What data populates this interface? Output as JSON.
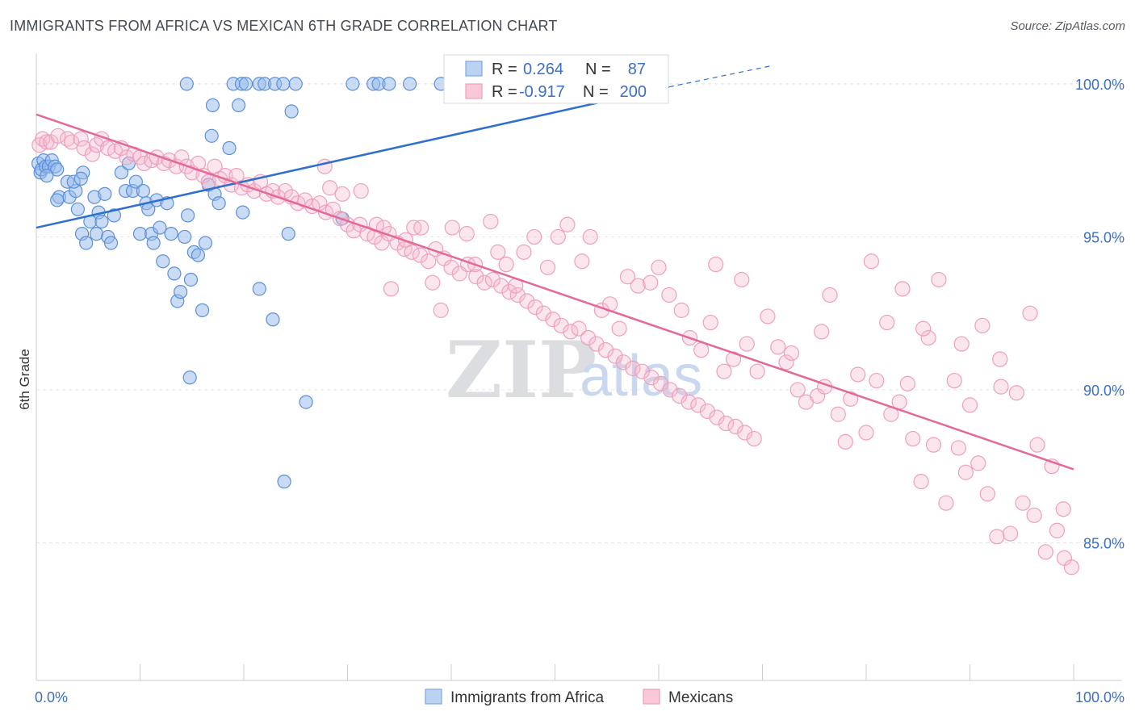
{
  "title": "IMMIGRANTS FROM AFRICA VS MEXICAN 6TH GRADE CORRELATION CHART",
  "source": "Source: ZipAtlas.com",
  "watermark": {
    "zip": "ZIP",
    "atlas": "atlas"
  },
  "colors": {
    "blue": "#5b8fd9",
    "blue_line": "#2f6fce",
    "pink": "#ee8fb0",
    "pink_line": "#e2699a"
  },
  "chart_data": {
    "type": "scatter",
    "ylabel": "6th Grade",
    "xlim": [
      0,
      100
    ],
    "ylim": [
      80.5,
      101.0
    ],
    "y_ticks": [
      85.0,
      90.0,
      95.0,
      100.0
    ],
    "y_tick_labels": [
      "85.0%",
      "90.0%",
      "95.0%",
      "100.0%"
    ],
    "x_tick_labels": [
      "0.0%",
      "100.0%"
    ],
    "grid": true,
    "legend": {
      "placement": "top-center",
      "rows": [
        {
          "r_label": "R =",
          "r_value": "0.264",
          "n_label": "N =",
          "n_value": "87"
        },
        {
          "r_label": "R =",
          "r_value": "-0.917",
          "n_label": "N =",
          "n_value": "200"
        }
      ]
    },
    "series": [
      {
        "name": "Immigrants from Africa",
        "trend": {
          "x": [
            0,
            61
          ],
          "y": [
            95.3,
            99.9
          ]
        },
        "trend_dashed": {
          "x": [
            61,
            71
          ],
          "y": [
            99.9,
            100.6
          ]
        },
        "points": [
          [
            0.2,
            97.4
          ],
          [
            0.4,
            97.1
          ],
          [
            0.5,
            97.2
          ],
          [
            0.7,
            97.5
          ],
          [
            0.9,
            97.3
          ],
          [
            1.2,
            97.3
          ],
          [
            1.5,
            97.5
          ],
          [
            1.8,
            97.3
          ],
          [
            2.0,
            97.2
          ],
          [
            4.5,
            97.1
          ],
          [
            2.2,
            96.3
          ],
          [
            2.0,
            96.2
          ],
          [
            3.0,
            96.8
          ],
          [
            3.2,
            96.3
          ],
          [
            3.8,
            96.5
          ],
          [
            3.6,
            96.8
          ],
          [
            4.3,
            96.9
          ],
          [
            4.0,
            95.9
          ],
          [
            4.4,
            95.1
          ],
          [
            4.8,
            94.8
          ],
          [
            5.2,
            95.5
          ],
          [
            5.6,
            96.3
          ],
          [
            5.8,
            95.1
          ],
          [
            6.0,
            95.8
          ],
          [
            6.3,
            95.5
          ],
          [
            6.6,
            96.4
          ],
          [
            6.9,
            95.0
          ],
          [
            7.2,
            94.8
          ],
          [
            7.5,
            95.7
          ],
          [
            8.2,
            97.1
          ],
          [
            8.6,
            96.5
          ],
          [
            8.9,
            97.4
          ],
          [
            9.3,
            96.5
          ],
          [
            9.6,
            96.8
          ],
          [
            10.0,
            95.1
          ],
          [
            10.3,
            96.5
          ],
          [
            10.6,
            96.1
          ],
          [
            10.8,
            95.9
          ],
          [
            11.1,
            95.1
          ],
          [
            11.3,
            94.8
          ],
          [
            11.6,
            96.2
          ],
          [
            11.9,
            95.3
          ],
          [
            12.2,
            94.2
          ],
          [
            12.6,
            96.1
          ],
          [
            13.0,
            95.1
          ],
          [
            13.3,
            93.8
          ],
          [
            13.6,
            92.9
          ],
          [
            13.9,
            93.2
          ],
          [
            14.3,
            95.0
          ],
          [
            14.6,
            95.7
          ],
          [
            14.9,
            93.6
          ],
          [
            15.2,
            94.5
          ],
          [
            15.6,
            94.4
          ],
          [
            16.0,
            92.6
          ],
          [
            16.3,
            94.8
          ],
          [
            16.6,
            96.7
          ],
          [
            16.9,
            98.3
          ],
          [
            17.2,
            96.4
          ],
          [
            17.6,
            96.1
          ],
          [
            18.6,
            97.9
          ],
          [
            19.5,
            99.3
          ],
          [
            19.9,
            95.8
          ],
          [
            21.5,
            93.3
          ],
          [
            22.8,
            92.3
          ],
          [
            24.3,
            95.1
          ],
          [
            24.6,
            99.1
          ],
          [
            14.8,
            90.4
          ],
          [
            26.0,
            89.6
          ],
          [
            23.9,
            87.0
          ],
          [
            17.0,
            99.3
          ],
          [
            14.5,
            100.0
          ],
          [
            19.0,
            100.0
          ],
          [
            19.8,
            100.0
          ],
          [
            20.2,
            100.0
          ],
          [
            21.5,
            100.0
          ],
          [
            22.0,
            100.0
          ],
          [
            23.0,
            100.0
          ],
          [
            23.8,
            100.0
          ],
          [
            25.0,
            100.0
          ],
          [
            30.5,
            100.0
          ],
          [
            32.5,
            100.0
          ],
          [
            33.0,
            100.0
          ],
          [
            34.0,
            100.0
          ],
          [
            36.0,
            100.0
          ],
          [
            39.0,
            100.0
          ],
          [
            29.5,
            95.6
          ],
          [
            1.0,
            97.0
          ]
        ]
      },
      {
        "name": "Mexicans",
        "trend": {
          "x": [
            0,
            100
          ],
          "y": [
            99.0,
            87.4
          ]
        },
        "points": [
          [
            0.3,
            98.0
          ],
          [
            0.6,
            98.2
          ],
          [
            1.0,
            98.1
          ],
          [
            1.4,
            98.1
          ],
          [
            2.1,
            98.3
          ],
          [
            3.0,
            98.2
          ],
          [
            3.4,
            98.1
          ],
          [
            4.3,
            98.2
          ],
          [
            4.6,
            97.9
          ],
          [
            5.4,
            97.7
          ],
          [
            5.8,
            98.0
          ],
          [
            6.3,
            98.2
          ],
          [
            6.9,
            97.9
          ],
          [
            7.6,
            97.8
          ],
          [
            8.2,
            97.9
          ],
          [
            8.7,
            97.6
          ],
          [
            9.4,
            97.7
          ],
          [
            10.0,
            97.6
          ],
          [
            10.4,
            97.4
          ],
          [
            11.1,
            97.5
          ],
          [
            11.6,
            97.6
          ],
          [
            12.3,
            97.4
          ],
          [
            12.8,
            97.5
          ],
          [
            13.5,
            97.3
          ],
          [
            14.0,
            97.6
          ],
          [
            14.5,
            97.3
          ],
          [
            15.0,
            97.1
          ],
          [
            15.6,
            97.4
          ],
          [
            16.1,
            97.0
          ],
          [
            16.6,
            96.8
          ],
          [
            17.2,
            97.3
          ],
          [
            17.7,
            96.9
          ],
          [
            18.2,
            97.0
          ],
          [
            18.8,
            96.7
          ],
          [
            19.3,
            97.0
          ],
          [
            19.8,
            96.6
          ],
          [
            20.4,
            96.7
          ],
          [
            21.0,
            96.5
          ],
          [
            21.6,
            96.8
          ],
          [
            22.2,
            96.4
          ],
          [
            22.8,
            96.5
          ],
          [
            23.3,
            96.3
          ],
          [
            24.0,
            96.5
          ],
          [
            24.6,
            96.3
          ],
          [
            25.2,
            96.1
          ],
          [
            25.9,
            96.2
          ],
          [
            26.6,
            96.0
          ],
          [
            27.3,
            96.1
          ],
          [
            27.9,
            95.8
          ],
          [
            28.6,
            95.9
          ],
          [
            29.3,
            95.6
          ],
          [
            30.0,
            95.4
          ],
          [
            30.6,
            95.2
          ],
          [
            31.2,
            95.4
          ],
          [
            31.9,
            95.1
          ],
          [
            32.6,
            95.0
          ],
          [
            33.3,
            94.8
          ],
          [
            34.0,
            95.1
          ],
          [
            34.8,
            94.8
          ],
          [
            35.5,
            94.6
          ],
          [
            36.2,
            94.5
          ],
          [
            37.0,
            94.4
          ],
          [
            37.8,
            94.2
          ],
          [
            38.5,
            94.6
          ],
          [
            39.3,
            94.3
          ],
          [
            40.0,
            94.0
          ],
          [
            40.8,
            93.8
          ],
          [
            41.6,
            94.1
          ],
          [
            42.4,
            93.7
          ],
          [
            43.2,
            93.5
          ],
          [
            44.0,
            93.6
          ],
          [
            44.8,
            93.4
          ],
          [
            45.6,
            93.2
          ],
          [
            46.4,
            93.1
          ],
          [
            47.3,
            92.9
          ],
          [
            48.1,
            92.7
          ],
          [
            48.9,
            92.5
          ],
          [
            49.8,
            92.3
          ],
          [
            50.6,
            92.1
          ],
          [
            51.5,
            91.9
          ],
          [
            52.3,
            92.0
          ],
          [
            53.2,
            91.7
          ],
          [
            54.0,
            91.5
          ],
          [
            54.9,
            91.3
          ],
          [
            55.8,
            91.1
          ],
          [
            56.6,
            90.9
          ],
          [
            57.5,
            90.7
          ],
          [
            58.4,
            90.6
          ],
          [
            59.3,
            90.4
          ],
          [
            60.2,
            90.2
          ],
          [
            61.1,
            90.0
          ],
          [
            62.0,
            89.8
          ],
          [
            62.9,
            89.6
          ],
          [
            63.8,
            89.5
          ],
          [
            64.7,
            89.3
          ],
          [
            65.6,
            89.1
          ],
          [
            66.5,
            88.9
          ],
          [
            67.4,
            88.8
          ],
          [
            68.3,
            88.6
          ],
          [
            69.2,
            88.4
          ],
          [
            27.8,
            97.3
          ],
          [
            28.3,
            96.6
          ],
          [
            29.5,
            96.4
          ],
          [
            31.3,
            96.5
          ],
          [
            32.8,
            95.4
          ],
          [
            33.5,
            95.3
          ],
          [
            34.2,
            93.3
          ],
          [
            35.6,
            94.9
          ],
          [
            36.4,
            95.3
          ],
          [
            37.1,
            95.3
          ],
          [
            38.2,
            93.5
          ],
          [
            39.0,
            92.6
          ],
          [
            40.1,
            95.3
          ],
          [
            41.5,
            95.1
          ],
          [
            42.3,
            94.1
          ],
          [
            43.8,
            95.5
          ],
          [
            44.5,
            94.5
          ],
          [
            45.3,
            94.1
          ],
          [
            46.2,
            93.4
          ],
          [
            47.0,
            94.5
          ],
          [
            48.0,
            95.0
          ],
          [
            49.3,
            94.0
          ],
          [
            50.3,
            95.0
          ],
          [
            51.2,
            95.4
          ],
          [
            52.6,
            94.2
          ],
          [
            53.4,
            95.0
          ],
          [
            54.5,
            92.6
          ],
          [
            55.3,
            92.8
          ],
          [
            56.2,
            92.0
          ],
          [
            57.0,
            93.7
          ],
          [
            58.0,
            93.4
          ],
          [
            59.2,
            93.5
          ],
          [
            60.0,
            94.0
          ],
          [
            61.0,
            93.1
          ],
          [
            62.2,
            92.6
          ],
          [
            63.0,
            91.7
          ],
          [
            64.1,
            91.3
          ],
          [
            65.0,
            92.2
          ],
          [
            66.3,
            90.6
          ],
          [
            67.2,
            91.0
          ],
          [
            68.5,
            91.5
          ],
          [
            69.5,
            90.6
          ],
          [
            70.5,
            92.4
          ],
          [
            71.5,
            91.4
          ],
          [
            72.3,
            90.9
          ],
          [
            73.4,
            90.0
          ],
          [
            74.2,
            89.6
          ],
          [
            75.3,
            89.8
          ],
          [
            76.0,
            90.1
          ],
          [
            77.3,
            89.2
          ],
          [
            78.0,
            88.3
          ],
          [
            79.2,
            90.5
          ],
          [
            80.0,
            88.6
          ],
          [
            81.0,
            90.3
          ],
          [
            82.4,
            89.2
          ],
          [
            83.2,
            89.6
          ],
          [
            84.5,
            88.4
          ],
          [
            85.3,
            87.0
          ],
          [
            86.5,
            88.2
          ],
          [
            87.7,
            86.3
          ],
          [
            88.9,
            88.1
          ],
          [
            89.6,
            87.3
          ],
          [
            90.8,
            87.6
          ],
          [
            91.7,
            86.6
          ],
          [
            92.6,
            85.2
          ],
          [
            93.9,
            85.3
          ],
          [
            95.1,
            86.3
          ],
          [
            96.2,
            85.9
          ],
          [
            97.3,
            84.7
          ],
          [
            98.4,
            85.4
          ],
          [
            99.1,
            84.5
          ],
          [
            99.8,
            84.2
          ],
          [
            65.5,
            94.1
          ],
          [
            68.0,
            93.6
          ],
          [
            72.8,
            91.2
          ],
          [
            75.7,
            91.9
          ],
          [
            78.5,
            89.7
          ],
          [
            82.0,
            92.2
          ],
          [
            84.0,
            90.2
          ],
          [
            86.0,
            91.7
          ],
          [
            88.5,
            90.3
          ],
          [
            90.0,
            89.5
          ],
          [
            91.2,
            92.1
          ],
          [
            92.9,
            91.0
          ],
          [
            94.5,
            89.9
          ],
          [
            96.5,
            88.2
          ],
          [
            97.9,
            87.5
          ],
          [
            99.0,
            86.1
          ],
          [
            76.5,
            93.1
          ],
          [
            80.5,
            94.2
          ],
          [
            83.5,
            93.3
          ],
          [
            85.5,
            92.0
          ],
          [
            87.0,
            93.6
          ],
          [
            89.2,
            91.5
          ],
          [
            93.0,
            90.1
          ],
          [
            95.8,
            92.5
          ]
        ]
      }
    ]
  },
  "bottom_legend": [
    {
      "label": "Immigrants from Africa"
    },
    {
      "label": "Mexicans"
    }
  ]
}
